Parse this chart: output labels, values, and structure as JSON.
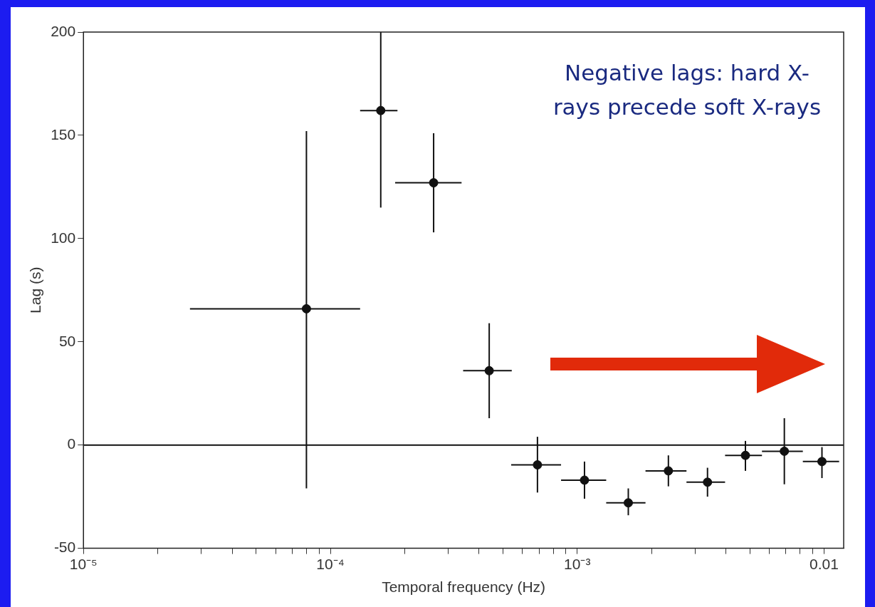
{
  "chart_data": {
    "type": "scatter",
    "xlabel": "Temporal frequency (Hz)",
    "ylabel": "Lag (s)",
    "log": "x",
    "xlim": [
      1e-05,
      0.012
    ],
    "xticks": [
      {
        "value": 1e-05,
        "label": "10⁻⁵"
      },
      {
        "value": 2e-05,
        "label": null
      },
      {
        "value": 3e-05,
        "label": null
      },
      {
        "value": 4e-05,
        "label": null
      },
      {
        "value": 5e-05,
        "label": null
      },
      {
        "value": 6e-05,
        "label": null
      },
      {
        "value": 7e-05,
        "label": null
      },
      {
        "value": 8e-05,
        "label": null
      },
      {
        "value": 9e-05,
        "label": null
      },
      {
        "value": 0.0001,
        "label": "10⁻⁴"
      },
      {
        "value": 0.0002,
        "label": null
      },
      {
        "value": 0.0003,
        "label": null
      },
      {
        "value": 0.0004,
        "label": null
      },
      {
        "value": 0.0005,
        "label": null
      },
      {
        "value": 0.0006,
        "label": null
      },
      {
        "value": 0.0007,
        "label": null
      },
      {
        "value": 0.0008,
        "label": null
      },
      {
        "value": 0.0009,
        "label": null
      },
      {
        "value": 0.001,
        "label": "10⁻³"
      },
      {
        "value": 0.002,
        "label": null
      },
      {
        "value": 0.003,
        "label": null
      },
      {
        "value": 0.004,
        "label": null
      },
      {
        "value": 0.005,
        "label": null
      },
      {
        "value": 0.006,
        "label": null
      },
      {
        "value": 0.007,
        "label": null
      },
      {
        "value": 0.008,
        "label": null
      },
      {
        "value": 0.009,
        "label": null
      },
      {
        "value": 0.01,
        "label": "0.01"
      }
    ],
    "ylim": [
      -50,
      200
    ],
    "yticks": [
      -50,
      0,
      50,
      100,
      150,
      200
    ],
    "grid": false,
    "marker": "circle",
    "series": [
      {
        "color": "#111111",
        "x": [
          8e-05,
          0.00016,
          0.000262,
          0.00044,
          0.00069,
          0.00107,
          0.00161,
          0.00234,
          0.00337,
          0.0048,
          0.0069,
          0.0098
        ],
        "values": [
          66,
          162,
          127,
          36,
          -9.6,
          -17,
          -28,
          -12.5,
          -18,
          -5,
          -3,
          -8
        ],
        "errors": [
          [
            -21,
            152
          ],
          [
            115,
            200
          ],
          [
            103,
            151
          ],
          [
            13,
            59
          ],
          [
            -23,
            4
          ],
          [
            -26,
            -8
          ],
          [
            -34,
            -21
          ],
          [
            -20,
            -5
          ],
          [
            -25,
            -11
          ],
          [
            -12.5,
            2
          ],
          [
            -19,
            13
          ],
          [
            -16,
            -1
          ]
        ],
        "xerrors": [
          [
            2.7e-05,
            0.000132
          ],
          [
            0.000132,
            0.000187
          ],
          [
            0.000183,
            0.00034
          ],
          [
            0.000345,
            0.000543
          ],
          [
            0.00054,
            0.00086
          ],
          [
            0.00086,
            0.00131
          ],
          [
            0.00131,
            0.00189
          ],
          [
            0.00189,
            0.00277
          ],
          [
            0.00277,
            0.00397
          ],
          [
            0.00397,
            0.0056
          ],
          [
            0.0056,
            0.0082
          ],
          [
            0.0082,
            0.0115
          ]
        ]
      }
    ],
    "ref_lines": [
      {
        "axis": "y",
        "value": 0,
        "color": "#111111"
      }
    ],
    "annotations": [
      "Negative lags: hard X-rays precede soft X-rays"
    ]
  }
}
